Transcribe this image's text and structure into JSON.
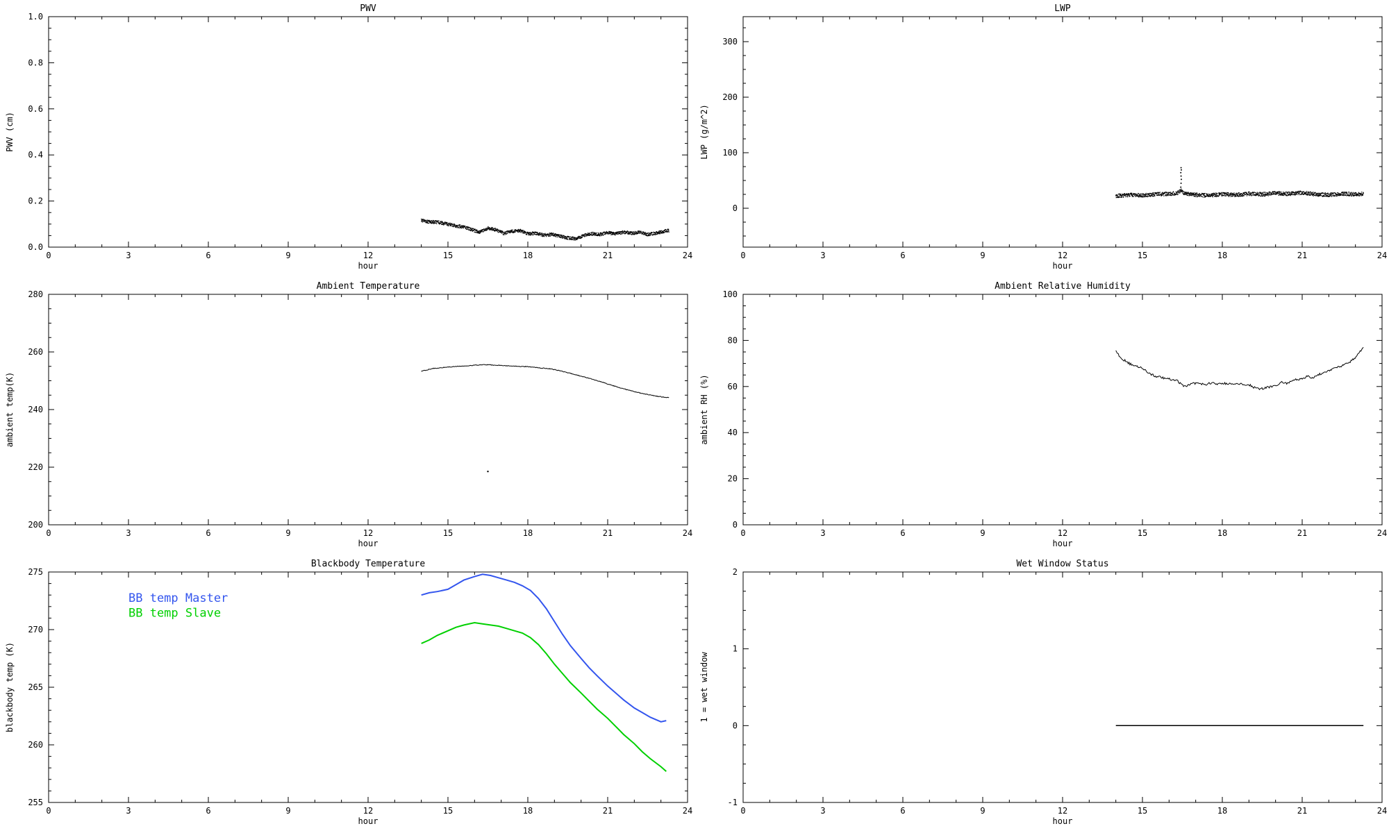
{
  "chart_data": [
    {
      "type": "line",
      "title": "PWV",
      "xlabel": "hour",
      "ylabel": "PWV (cm)",
      "xlim": [
        0,
        24
      ],
      "ylim": [
        0,
        1.0
      ],
      "xticks": [
        0,
        3,
        6,
        9,
        12,
        15,
        18,
        21,
        24
      ],
      "xminor": 3,
      "yticks": [
        0.0,
        0.2,
        0.4,
        0.6,
        0.8,
        1.0
      ],
      "ytick_labels": [
        "0.0",
        "0.2",
        "0.4",
        "0.6",
        "0.8",
        "1.0"
      ],
      "yminor": 4,
      "grid": false,
      "series": [
        {
          "name": "PWV",
          "color": "#000000",
          "style": "scatter-noise",
          "noise": 0.007,
          "n": 1400,
          "size": 0.7,
          "x": [
            14.0,
            14.3,
            14.6,
            15.0,
            15.3,
            15.6,
            15.9,
            16.2,
            16.5,
            16.8,
            17.1,
            17.4,
            17.7,
            18.0,
            18.3,
            18.6,
            18.9,
            19.2,
            19.5,
            19.8,
            20.1,
            20.4,
            20.7,
            21.0,
            21.3,
            21.6,
            21.9,
            22.2,
            22.5,
            22.8,
            23.1,
            23.3
          ],
          "y": [
            0.115,
            0.11,
            0.108,
            0.1,
            0.092,
            0.088,
            0.075,
            0.065,
            0.082,
            0.075,
            0.06,
            0.068,
            0.072,
            0.058,
            0.06,
            0.052,
            0.055,
            0.048,
            0.04,
            0.036,
            0.05,
            0.058,
            0.055,
            0.062,
            0.058,
            0.066,
            0.06,
            0.065,
            0.055,
            0.06,
            0.068,
            0.072
          ]
        }
      ]
    },
    {
      "type": "line",
      "title": "LWP",
      "xlabel": "hour",
      "ylabel": "LWP (g/m^2)",
      "xlim": [
        0,
        24
      ],
      "ylim": [
        -70,
        345
      ],
      "xticks": [
        0,
        3,
        6,
        9,
        12,
        15,
        18,
        21,
        24
      ],
      "xminor": 3,
      "yticks": [
        0,
        100,
        200,
        300
      ],
      "ytick_labels": [
        "0",
        "100",
        "200",
        "300"
      ],
      "yminor": 4,
      "grid": false,
      "series": [
        {
          "name": "LWP",
          "color": "#000000",
          "style": "scatter-noise",
          "noise": 3.5,
          "n": 1400,
          "size": 0.7,
          "x": [
            14.0,
            14.5,
            15.0,
            15.5,
            16.0,
            16.3,
            16.45,
            16.6,
            17.0,
            17.5,
            18.0,
            18.5,
            19.0,
            19.5,
            20.0,
            20.5,
            21.0,
            21.5,
            22.0,
            22.5,
            23.0,
            23.3
          ],
          "y": [
            22,
            24,
            23,
            25,
            26,
            27,
            32,
            26,
            24,
            23,
            25,
            24,
            26,
            25,
            27,
            26,
            28,
            25,
            24,
            26,
            25,
            26
          ]
        },
        {
          "name": "LWP spike",
          "color": "#000000",
          "style": "dots",
          "size": 1.0,
          "x": [
            16.44,
            16.45,
            16.46,
            16.45,
            16.44,
            16.46,
            16.45
          ],
          "y": [
            38,
            45,
            52,
            58,
            64,
            69,
            73
          ]
        }
      ]
    },
    {
      "type": "line",
      "title": "Ambient Temperature",
      "xlabel": "hour",
      "ylabel": "ambient temp(K)",
      "xlim": [
        0,
        24
      ],
      "ylim": [
        200,
        280
      ],
      "xticks": [
        0,
        3,
        6,
        9,
        12,
        15,
        18,
        21,
        24
      ],
      "xminor": 3,
      "yticks": [
        200,
        220,
        240,
        260,
        280
      ],
      "ytick_labels": [
        "200",
        "220",
        "240",
        "260",
        "280"
      ],
      "yminor": 4,
      "grid": false,
      "series": [
        {
          "name": "ambient temperature",
          "color": "#000000",
          "style": "line-noise",
          "noise": 0.12,
          "n": 400,
          "width": 1,
          "x": [
            14.0,
            14.4,
            14.8,
            15.2,
            15.6,
            16.0,
            16.4,
            16.8,
            17.2,
            17.6,
            18.0,
            18.4,
            18.8,
            19.2,
            19.6,
            20.0,
            20.4,
            20.8,
            21.2,
            21.6,
            22.0,
            22.4,
            22.8,
            23.1,
            23.3
          ],
          "y": [
            253.3,
            254.2,
            254.6,
            254.9,
            255.1,
            255.4,
            255.6,
            255.4,
            255.2,
            255.0,
            254.9,
            254.5,
            254.2,
            253.5,
            252.6,
            251.6,
            250.6,
            249.5,
            248.3,
            247.2,
            246.2,
            245.4,
            244.7,
            244.3,
            244.2
          ]
        },
        {
          "name": "outlier point",
          "color": "#000000",
          "style": "dots",
          "size": 1.2,
          "x": [
            16.5
          ],
          "y": [
            218.5
          ]
        }
      ]
    },
    {
      "type": "line",
      "title": "Ambient Relative Humidity",
      "xlabel": "hour",
      "ylabel": "ambient RH (%)",
      "xlim": [
        0,
        24
      ],
      "ylim": [
        0,
        100
      ],
      "xticks": [
        0,
        3,
        6,
        9,
        12,
        15,
        18,
        21,
        24
      ],
      "xminor": 3,
      "yticks": [
        0,
        20,
        40,
        60,
        80,
        100
      ],
      "ytick_labels": [
        "0",
        "20",
        "40",
        "60",
        "80",
        "100"
      ],
      "yminor": 4,
      "grid": false,
      "series": [
        {
          "name": "ambient RH",
          "color": "#000000",
          "style": "line-noise",
          "noise": 0.5,
          "n": 300,
          "width": 1,
          "x": [
            14.0,
            14.15,
            14.3,
            14.5,
            14.7,
            14.9,
            15.1,
            15.3,
            15.5,
            15.7,
            15.9,
            16.1,
            16.3,
            16.5,
            16.65,
            16.8,
            17.0,
            17.2,
            17.4,
            17.6,
            17.8,
            18.0,
            18.2,
            18.4,
            18.6,
            18.8,
            19.0,
            19.2,
            19.4,
            19.6,
            19.8,
            20.0,
            20.2,
            20.4,
            20.6,
            20.8,
            21.0,
            21.2,
            21.4,
            21.6,
            21.8,
            22.0,
            22.2,
            22.4,
            22.6,
            22.8,
            23.0,
            23.15,
            23.3
          ],
          "y": [
            75.5,
            73.0,
            71.5,
            70.0,
            69.0,
            68.5,
            67.0,
            65.5,
            64.5,
            64.0,
            63.5,
            63.0,
            62.5,
            60.5,
            59.8,
            61.0,
            61.5,
            61.3,
            61.0,
            61.5,
            61.2,
            61.5,
            61.0,
            61.3,
            61.5,
            61.0,
            60.8,
            59.5,
            59.0,
            59.3,
            59.8,
            60.2,
            61.8,
            61.3,
            62.5,
            63.0,
            63.5,
            64.5,
            63.8,
            65.2,
            66.0,
            67.0,
            67.8,
            68.5,
            69.5,
            70.8,
            72.5,
            74.5,
            77.5
          ]
        }
      ]
    },
    {
      "type": "line",
      "title": "Blackbody Temperature",
      "xlabel": "hour",
      "ylabel": "blackbody temp (K)",
      "xlim": [
        0,
        24
      ],
      "ylim": [
        255,
        275
      ],
      "xticks": [
        0,
        3,
        6,
        9,
        12,
        15,
        18,
        21,
        24
      ],
      "xminor": 3,
      "yticks": [
        255,
        260,
        265,
        270,
        275
      ],
      "ytick_labels": [
        "255",
        "260",
        "265",
        "270",
        "275"
      ],
      "yminor": 5,
      "grid": false,
      "legend_position": "top-left-inside",
      "legend": [
        {
          "label": "BB temp Master",
          "color": "#3355ee",
          "x": 3.0,
          "y": 272.4
        },
        {
          "label": "BB temp Slave",
          "color": "#00d000",
          "x": 3.0,
          "y": 271.1
        }
      ],
      "series": [
        {
          "name": "BB temp Master",
          "color": "#3355ee",
          "style": "line",
          "width": 2,
          "x": [
            14.0,
            14.3,
            14.6,
            15.0,
            15.3,
            15.6,
            16.0,
            16.3,
            16.6,
            16.9,
            17.2,
            17.5,
            17.8,
            18.1,
            18.4,
            18.7,
            19.0,
            19.3,
            19.6,
            20.0,
            20.3,
            20.6,
            21.0,
            21.3,
            21.6,
            22.0,
            22.3,
            22.6,
            23.0,
            23.2
          ],
          "y": [
            273.0,
            273.2,
            273.3,
            273.5,
            273.9,
            274.3,
            274.6,
            274.8,
            274.7,
            274.5,
            274.3,
            274.1,
            273.8,
            273.4,
            272.7,
            271.8,
            270.7,
            269.6,
            268.6,
            267.5,
            266.7,
            266.0,
            265.1,
            264.5,
            263.9,
            263.2,
            262.8,
            262.4,
            262.0,
            262.1
          ]
        },
        {
          "name": "BB temp Slave",
          "color": "#00d000",
          "style": "line",
          "width": 2,
          "x": [
            14.0,
            14.3,
            14.6,
            15.0,
            15.3,
            15.6,
            16.0,
            16.3,
            16.6,
            16.9,
            17.2,
            17.5,
            17.8,
            18.1,
            18.4,
            18.7,
            19.0,
            19.3,
            19.6,
            20.0,
            20.3,
            20.6,
            21.0,
            21.3,
            21.6,
            22.0,
            22.3,
            22.6,
            23.0,
            23.2
          ],
          "y": [
            268.8,
            269.1,
            269.5,
            269.9,
            270.2,
            270.4,
            270.6,
            270.5,
            270.4,
            270.3,
            270.1,
            269.9,
            269.7,
            269.3,
            268.7,
            267.9,
            267.0,
            266.2,
            265.4,
            264.5,
            263.8,
            263.1,
            262.3,
            261.6,
            260.9,
            260.1,
            259.4,
            258.8,
            258.1,
            257.7
          ]
        }
      ]
    },
    {
      "type": "line",
      "title": "Wet Window Status",
      "xlabel": "hour",
      "ylabel": "1 = wet window",
      "xlim": [
        0,
        24
      ],
      "ylim": [
        -1,
        2
      ],
      "xticks": [
        0,
        3,
        6,
        9,
        12,
        15,
        18,
        21,
        24
      ],
      "xminor": 3,
      "yticks": [
        -1,
        0,
        1,
        2
      ],
      "ytick_labels": [
        "-1",
        "0",
        "1",
        "2"
      ],
      "yminor": 4,
      "grid": false,
      "series": [
        {
          "name": "wet window flag",
          "color": "#000000",
          "style": "line",
          "width": 1.5,
          "x": [
            14.0,
            23.3
          ],
          "y": [
            0,
            0
          ]
        }
      ]
    }
  ]
}
